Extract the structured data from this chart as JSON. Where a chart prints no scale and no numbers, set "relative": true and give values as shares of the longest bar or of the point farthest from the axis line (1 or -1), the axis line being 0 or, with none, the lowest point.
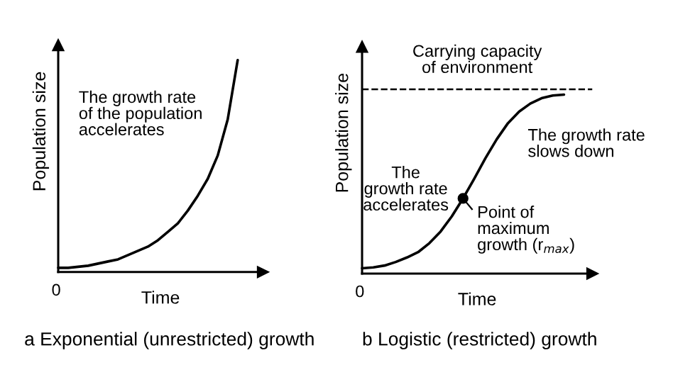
{
  "chart_data": [
    {
      "type": "line",
      "relative": true,
      "title": "a Exponential (unrestricted) growth",
      "xlabel": "Time",
      "ylabel": "Population size",
      "categories": [
        null,
        null,
        null,
        null,
        null,
        null,
        null,
        null,
        null,
        null,
        null,
        null,
        null,
        null,
        null,
        null,
        null,
        null,
        null
      ],
      "series": [
        {
          "color": "#000000",
          "values": [
            0.02,
            0.02,
            0.025,
            0.03,
            0.04,
            0.05,
            0.06,
            0.08,
            0.1,
            0.12,
            0.15,
            0.19,
            0.23,
            0.29,
            0.36,
            0.44,
            0.55,
            0.72,
            1.0
          ]
        }
      ],
      "annotations": [
        "0",
        "The growth rate\nof the population\naccelerates"
      ]
    },
    {
      "type": "line",
      "relative": true,
      "title": "b Logistic (restricted) growth",
      "xlabel": "Time",
      "ylabel": "Population size",
      "categories": [
        null,
        null,
        null,
        null,
        null,
        null,
        null,
        null,
        null,
        null,
        null,
        null,
        null,
        null,
        null,
        null,
        null,
        null,
        null
      ],
      "series": [
        {
          "color": "#000000",
          "values": [
            0.03,
            0.035,
            0.045,
            0.065,
            0.09,
            0.12,
            0.17,
            0.235,
            0.32,
            0.42,
            0.53,
            0.645,
            0.75,
            0.84,
            0.905,
            0.95,
            0.98,
            0.995,
            1.0
          ]
        }
      ],
      "ref_lines": [
        {
          "axis": "y",
          "value": 1.03,
          "label": "Carrying capacity\nof environment",
          "line_style": "dashed",
          "color": "#000000"
        }
      ],
      "annotations": [
        "0",
        "The\ngrowth rate\naccelerates",
        "The growth rate\nslows down",
        "Point of\nmaximum\ngrowth (r$_{max}$)"
      ]
    }
  ]
}
